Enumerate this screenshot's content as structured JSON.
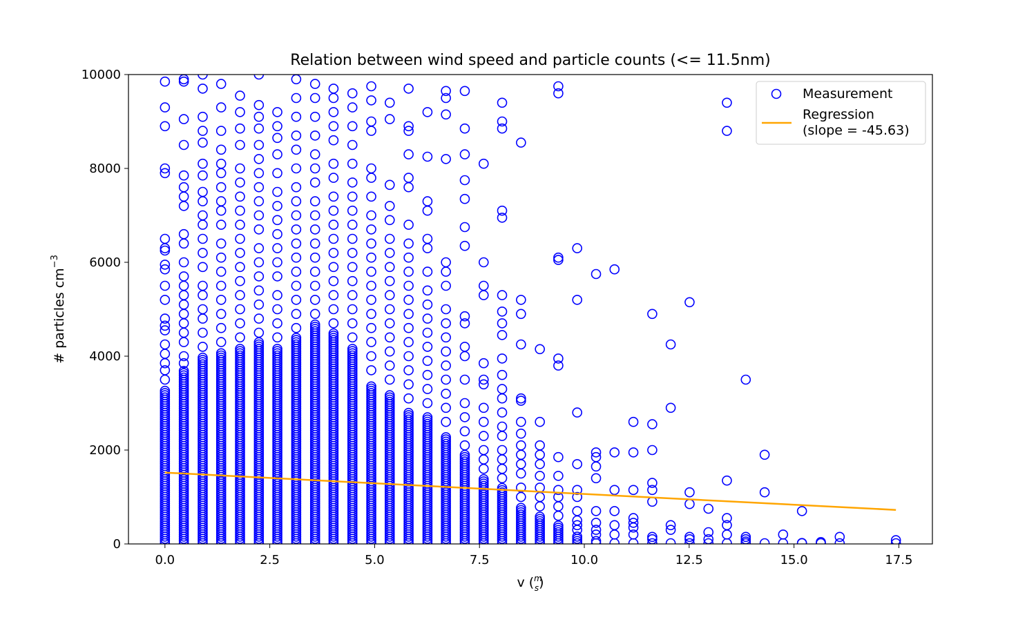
{
  "chart_data": {
    "type": "scatter",
    "title": "Relation between wind speed and particle counts (<= 11.5nm)",
    "xlabel": "v (m/s)",
    "ylabel": "# particles cm^-3",
    "xlim": [
      -0.87,
      18.3
    ],
    "ylim": [
      0,
      10000
    ],
    "xticks": [
      0,
      2.5,
      5,
      7.5,
      10,
      12.5,
      15,
      17.5
    ],
    "xtick_labels": [
      "0.0",
      "2.5",
      "5.0",
      "7.5",
      "10.0",
      "12.5",
      "15.0",
      "17.5"
    ],
    "yticks": [
      0,
      2000,
      4000,
      6000,
      8000,
      10000
    ],
    "ytick_labels": [
      "0",
      "2000",
      "4000",
      "6000",
      "8000",
      "10000"
    ],
    "grid": false,
    "legend_position": "top-right",
    "colors": {
      "measurement": "#0000ff",
      "regression": "#ffa500"
    },
    "series": [
      {
        "name": "Measurement",
        "kind": "scatter",
        "marker": "open-circle",
        "columns": [
          {
            "x": 0.0,
            "dense_max": 3300,
            "outliers": [
              3500,
              3700,
              3850,
              4050,
              4250,
              4550,
              4650,
              4800,
              5200,
              5500,
              5850,
              5950,
              6250,
              6300,
              6500,
              7900,
              8000,
              8900,
              9300,
              9850
            ]
          },
          {
            "x": 0.45,
            "dense_max": 3700,
            "outliers": [
              3850,
              4000,
              4300,
              4500,
              4700,
              4900,
              5100,
              5300,
              5500,
              5700,
              6000,
              6400,
              6600,
              7200,
              7400,
              7600,
              7850,
              8500,
              9050,
              9850,
              9900
            ]
          },
          {
            "x": 0.9,
            "dense_max": 4000,
            "outliers": [
              4200,
              4500,
              4800,
              5000,
              5300,
              5500,
              5900,
              6200,
              6500,
              6800,
              7000,
              7300,
              7500,
              7850,
              8100,
              8550,
              8800,
              9100,
              9700,
              10000
            ]
          },
          {
            "x": 1.34,
            "dense_max": 4100,
            "outliers": [
              4300,
              4600,
              4900,
              5200,
              5500,
              5800,
              6100,
              6400,
              6800,
              7100,
              7300,
              7600,
              7900,
              8100,
              8400,
              8800,
              9300,
              9800
            ]
          },
          {
            "x": 1.79,
            "dense_max": 4200,
            "outliers": [
              4400,
              4700,
              5000,
              5300,
              5600,
              5900,
              6200,
              6500,
              6800,
              7100,
              7400,
              7700,
              8000,
              8500,
              8850,
              9200,
              9550
            ]
          },
          {
            "x": 2.24,
            "dense_max": 4300,
            "outliers": [
              4500,
              4800,
              5100,
              5400,
              5700,
              6000,
              6300,
              6700,
              7000,
              7300,
              7600,
              7900,
              8200,
              8500,
              8850,
              9100,
              9350,
              10000
            ]
          },
          {
            "x": 2.68,
            "dense_max": 4200,
            "outliers": [
              4400,
              4700,
              5000,
              5300,
              5700,
              6000,
              6300,
              6600,
              6900,
              7200,
              7500,
              7900,
              8300,
              8650,
              8900,
              9200
            ]
          },
          {
            "x": 3.13,
            "dense_max": 4400,
            "outliers": [
              4600,
              4900,
              5200,
              5500,
              5800,
              6100,
              6400,
              6700,
              7000,
              7300,
              7600,
              8000,
              8400,
              8700,
              9100,
              9500,
              9900
            ]
          },
          {
            "x": 3.58,
            "dense_max": 4700,
            "outliers": [
              4900,
              5200,
              5500,
              5800,
              6100,
              6400,
              6700,
              7000,
              7300,
              7700,
              8000,
              8300,
              8700,
              9100,
              9500,
              9800
            ]
          },
          {
            "x": 4.02,
            "dense_max": 4500,
            "outliers": [
              4700,
              5000,
              5300,
              5600,
              5900,
              6200,
              6500,
              6800,
              7100,
              7400,
              7800,
              8100,
              8600,
              8900,
              9200,
              9500,
              9700
            ]
          },
          {
            "x": 4.47,
            "dense_max": 4200,
            "outliers": [
              4400,
              4700,
              5000,
              5300,
              5600,
              5900,
              6200,
              6500,
              6800,
              7100,
              7400,
              7700,
              8100,
              8500,
              8900,
              9300,
              9600
            ]
          },
          {
            "x": 4.92,
            "dense_max": 3400,
            "outliers": [
              3700,
              4000,
              4300,
              4600,
              4900,
              5200,
              5500,
              5800,
              6100,
              6400,
              6700,
              7000,
              7400,
              7800,
              8000,
              8800,
              9000,
              9450,
              9750
            ]
          },
          {
            "x": 5.36,
            "dense_max": 3200,
            "outliers": [
              3500,
              3800,
              4100,
              4400,
              4700,
              5000,
              5300,
              5600,
              5900,
              6200,
              6500,
              6900,
              7200,
              7650,
              9050,
              9400
            ]
          },
          {
            "x": 5.81,
            "dense_max": 2800,
            "outliers": [
              3100,
              3400,
              3700,
              4000,
              4300,
              4600,
              4900,
              5200,
              5500,
              5800,
              6100,
              6400,
              6800,
              7600,
              7800,
              8300,
              8800,
              8900,
              9700
            ]
          },
          {
            "x": 6.26,
            "dense_max": 2700,
            "outliers": [
              3000,
              3300,
              3600,
              3900,
              4200,
              4500,
              4800,
              5100,
              5400,
              5800,
              6300,
              6500,
              7100,
              7300,
              8250,
              9200
            ]
          },
          {
            "x": 6.7,
            "dense_max": 2300,
            "outliers": [
              2600,
              2900,
              3200,
              3500,
              3800,
              4100,
              4400,
              4700,
              5000,
              5500,
              5800,
              6000,
              8200,
              9150,
              9500,
              9650
            ]
          },
          {
            "x": 7.15,
            "dense_max": 1900,
            "outliers": [
              2100,
              2400,
              2700,
              3000,
              3500,
              4000,
              4200,
              4700,
              4850,
              6350,
              6750,
              7350,
              7750,
              8300,
              8850,
              9650
            ]
          },
          {
            "x": 7.6,
            "dense_max": 1400,
            "outliers": [
              1600,
              1800,
              2000,
              2300,
              2600,
              2900,
              3400,
              3500,
              3850,
              5300,
              5500,
              6000,
              8100
            ]
          },
          {
            "x": 8.04,
            "dense_max": 1200,
            "outliers": [
              1400,
              1600,
              1800,
              2000,
              2300,
              2500,
              2800,
              3100,
              3300,
              3600,
              3950,
              4450,
              4700,
              4950,
              5300,
              6950,
              7100,
              8850,
              9000,
              9400
            ]
          },
          {
            "x": 8.49,
            "dense_max": 800,
            "outliers": [
              1000,
              1200,
              1500,
              1700,
              1900,
              2100,
              2350,
              2600,
              3050,
              3100,
              4250,
              4900,
              5200,
              8550
            ]
          },
          {
            "x": 8.94,
            "dense_max": 600,
            "outliers": [
              800,
              1000,
              1200,
              1450,
              1700,
              1900,
              2100,
              2600,
              4150
            ]
          },
          {
            "x": 9.38,
            "dense_max": 400,
            "outliers": [
              600,
              800,
              1000,
              1150,
              1450,
              1850,
              3800,
              3950,
              6050,
              6100,
              9600,
              9750
            ]
          },
          {
            "x": 9.83,
            "dense_max": 200,
            "outliers": [
              300,
              400,
              500,
              700,
              1000,
              1150,
              1700,
              2800,
              5200,
              6300
            ]
          },
          {
            "x": 10.28,
            "dense_max": 100,
            "outliers": [
              200,
              300,
              450,
              700,
              1400,
              1650,
              1850,
              1950,
              5750
            ]
          },
          {
            "x": 10.72,
            "dense_max": 50,
            "outliers": [
              200,
              400,
              700,
              1150,
              1950,
              5850
            ]
          },
          {
            "x": 11.17,
            "dense_max": 50,
            "outliers": [
              200,
              350,
              450,
              550,
              1150,
              1950,
              2600
            ]
          },
          {
            "x": 11.62,
            "dense_max": 50,
            "outliers": [
              100,
              150,
              900,
              1150,
              1300,
              2000,
              2550,
              4900
            ]
          },
          {
            "x": 12.06,
            "dense_max": 30,
            "outliers": [
              300,
              400,
              2900,
              4250
            ]
          },
          {
            "x": 12.51,
            "dense_max": 30,
            "outliers": [
              100,
              150,
              850,
              1100,
              5150
            ]
          },
          {
            "x": 12.96,
            "dense_max": 30,
            "outliers": [
              100,
              250,
              750
            ]
          },
          {
            "x": 13.4,
            "dense_max": 30,
            "outliers": [
              200,
              400,
              550,
              1350,
              8800,
              9400
            ]
          },
          {
            "x": 13.85,
            "dense_max": 30,
            "outliers": [
              50,
              100,
              150,
              3500
            ]
          },
          {
            "x": 14.3,
            "dense_max": 30,
            "outliers": [
              1100,
              1900
            ]
          },
          {
            "x": 14.74,
            "dense_max": 0,
            "outliers": [
              200
            ]
          },
          {
            "x": 15.19,
            "dense_max": 0,
            "outliers": [
              20,
              700
            ]
          },
          {
            "x": 15.64,
            "dense_max": 0,
            "outliers": [
              40
            ]
          },
          {
            "x": 16.09,
            "dense_max": 50,
            "outliers": [
              150
            ]
          },
          {
            "x": 17.43,
            "dense_max": 0,
            "outliers": [
              80
            ]
          }
        ]
      },
      {
        "name": "Regression\n(slope = -45.63)",
        "kind": "line",
        "x": [
          0,
          17.43
        ],
        "y": [
          1520,
          725
        ],
        "slope": -45.63
      }
    ]
  }
}
